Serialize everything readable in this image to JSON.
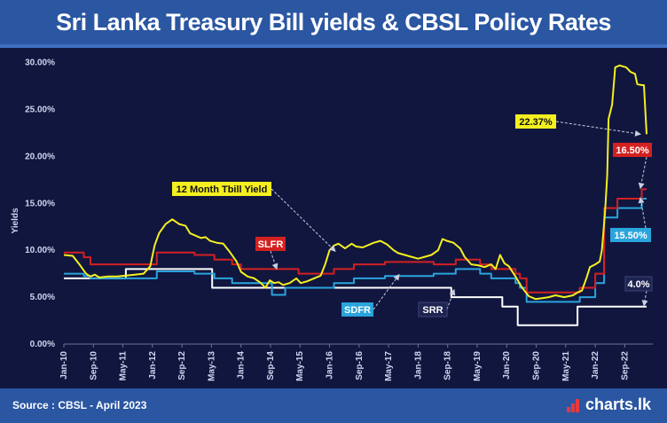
{
  "header": {
    "title": "Sri Lanka Treasury Bill yields & CBSL Policy Rates"
  },
  "footer": {
    "source": "Source : CBSL - April 2023",
    "brand": "charts.lk"
  },
  "colors": {
    "tbill": "#f4ef1f",
    "slfr": "#d42020",
    "sdfr": "#2aa4dc",
    "srr": "#ffffff",
    "panel": "#11163f",
    "bar": "#2a56a2"
  },
  "chart_data": {
    "type": "line",
    "ylabel": "Yields",
    "ylim": [
      0,
      31
    ],
    "yticks": [
      0,
      5,
      10,
      15,
      20,
      25,
      30
    ],
    "ytick_labels": [
      "0.00%",
      "5.00%",
      "10.00%",
      "15.00%",
      "20.00%",
      "25.00%",
      "30.00%"
    ],
    "xlim": [
      2010.0,
      2023.3
    ],
    "xticks": [
      2010.0,
      2010.667,
      2011.333,
      2012.0,
      2012.667,
      2013.333,
      2014.0,
      2014.667,
      2015.333,
      2016.0,
      2016.667,
      2017.333,
      2018.0,
      2018.667,
      2019.333,
      2020.0,
      2020.667,
      2021.333,
      2022.0,
      2022.667
    ],
    "xtick_labels": [
      "Jan-10",
      "Sep-10",
      "May-11",
      "Jan-12",
      "Sep-12",
      "May-13",
      "Jan-14",
      "Sep-14",
      "May-15",
      "Jan-16",
      "Sep-16",
      "May-17",
      "Jan-18",
      "Sep-18",
      "May-19",
      "Jan-20",
      "Sep-20",
      "May-21",
      "Jan-22",
      "Sep-22"
    ],
    "series": [
      {
        "name": "12 Month Tbill Yield",
        "color": "#f4ef1f",
        "points": [
          [
            2010.0,
            9.5
          ],
          [
            2010.2,
            9.4
          ],
          [
            2010.35,
            8.5
          ],
          [
            2010.5,
            7.5
          ],
          [
            2010.6,
            7.2
          ],
          [
            2010.7,
            7.4
          ],
          [
            2010.8,
            7.1
          ],
          [
            2011.0,
            7.2
          ],
          [
            2011.2,
            7.2
          ],
          [
            2011.4,
            7.3
          ],
          [
            2011.6,
            7.4
          ],
          [
            2011.8,
            7.5
          ],
          [
            2011.95,
            8.3
          ],
          [
            2012.05,
            10.5
          ],
          [
            2012.15,
            11.8
          ],
          [
            2012.3,
            12.8
          ],
          [
            2012.45,
            13.3
          ],
          [
            2012.6,
            12.8
          ],
          [
            2012.75,
            12.6
          ],
          [
            2012.85,
            11.8
          ],
          [
            2013.0,
            11.5
          ],
          [
            2013.1,
            11.3
          ],
          [
            2013.2,
            11.4
          ],
          [
            2013.3,
            11.0
          ],
          [
            2013.45,
            10.8
          ],
          [
            2013.6,
            10.7
          ],
          [
            2013.75,
            9.8
          ],
          [
            2013.9,
            8.8
          ],
          [
            2014.0,
            7.7
          ],
          [
            2014.15,
            7.2
          ],
          [
            2014.3,
            7.0
          ],
          [
            2014.45,
            6.5
          ],
          [
            2014.55,
            6.0
          ],
          [
            2014.65,
            6.8
          ],
          [
            2014.75,
            6.5
          ],
          [
            2014.85,
            6.6
          ],
          [
            2014.95,
            6.3
          ],
          [
            2015.1,
            6.5
          ],
          [
            2015.25,
            7.0
          ],
          [
            2015.35,
            6.5
          ],
          [
            2015.5,
            6.7
          ],
          [
            2015.65,
            7.0
          ],
          [
            2015.8,
            7.3
          ],
          [
            2015.9,
            8.5
          ],
          [
            2016.0,
            10.0
          ],
          [
            2016.1,
            10.5
          ],
          [
            2016.2,
            10.7
          ],
          [
            2016.35,
            10.2
          ],
          [
            2016.5,
            10.7
          ],
          [
            2016.6,
            10.4
          ],
          [
            2016.75,
            10.3
          ],
          [
            2016.9,
            10.6
          ],
          [
            2017.0,
            10.8
          ],
          [
            2017.15,
            11.0
          ],
          [
            2017.3,
            10.6
          ],
          [
            2017.45,
            10.0
          ],
          [
            2017.55,
            9.7
          ],
          [
            2017.7,
            9.5
          ],
          [
            2017.85,
            9.3
          ],
          [
            2018.0,
            9.1
          ],
          [
            2018.15,
            9.3
          ],
          [
            2018.3,
            9.5
          ],
          [
            2018.45,
            10.0
          ],
          [
            2018.55,
            11.2
          ],
          [
            2018.65,
            11.0
          ],
          [
            2018.8,
            10.8
          ],
          [
            2018.95,
            10.2
          ],
          [
            2019.05,
            9.3
          ],
          [
            2019.2,
            8.5
          ],
          [
            2019.35,
            8.4
          ],
          [
            2019.5,
            8.2
          ],
          [
            2019.65,
            8.5
          ],
          [
            2019.75,
            8.0
          ],
          [
            2019.85,
            9.5
          ],
          [
            2019.95,
            8.6
          ],
          [
            2020.05,
            8.3
          ],
          [
            2020.2,
            7.2
          ],
          [
            2020.35,
            6.0
          ],
          [
            2020.5,
            5.1
          ],
          [
            2020.65,
            4.8
          ],
          [
            2020.8,
            4.9
          ],
          [
            2020.95,
            5.0
          ],
          [
            2021.1,
            5.2
          ],
          [
            2021.3,
            5.0
          ],
          [
            2021.5,
            5.2
          ],
          [
            2021.6,
            5.5
          ],
          [
            2021.7,
            5.7
          ],
          [
            2021.8,
            7.0
          ],
          [
            2021.88,
            8.2
          ],
          [
            2022.0,
            8.5
          ],
          [
            2022.1,
            8.8
          ],
          [
            2022.15,
            10.0
          ],
          [
            2022.22,
            14.0
          ],
          [
            2022.27,
            18.0
          ],
          [
            2022.3,
            24.0
          ],
          [
            2022.38,
            25.5
          ],
          [
            2022.45,
            29.5
          ],
          [
            2022.55,
            29.7
          ],
          [
            2022.7,
            29.5
          ],
          [
            2022.8,
            29.0
          ],
          [
            2022.9,
            28.8
          ],
          [
            2022.95,
            27.7
          ],
          [
            2023.05,
            27.6
          ],
          [
            2023.1,
            27.6
          ],
          [
            2023.16,
            22.37
          ]
        ]
      },
      {
        "name": "SLFR",
        "color": "#d42020",
        "points": [
          [
            2010.0,
            9.75
          ],
          [
            2010.45,
            9.75
          ],
          [
            2010.45,
            9.25
          ],
          [
            2010.6,
            9.25
          ],
          [
            2010.6,
            8.5
          ],
          [
            2012.1,
            8.5
          ],
          [
            2012.1,
            9.75
          ],
          [
            2012.95,
            9.75
          ],
          [
            2012.95,
            9.5
          ],
          [
            2013.4,
            9.5
          ],
          [
            2013.4,
            9.0
          ],
          [
            2013.8,
            9.0
          ],
          [
            2013.8,
            8.5
          ],
          [
            2014.0,
            8.5
          ],
          [
            2014.0,
            8.0
          ],
          [
            2015.3,
            8.0
          ],
          [
            2015.3,
            7.5
          ],
          [
            2016.1,
            7.5
          ],
          [
            2016.1,
            8.0
          ],
          [
            2016.55,
            8.0
          ],
          [
            2016.55,
            8.5
          ],
          [
            2017.25,
            8.5
          ],
          [
            2017.25,
            8.75
          ],
          [
            2018.35,
            8.75
          ],
          [
            2018.35,
            8.5
          ],
          [
            2018.85,
            8.5
          ],
          [
            2018.85,
            9.0
          ],
          [
            2019.4,
            9.0
          ],
          [
            2019.4,
            8.5
          ],
          [
            2019.65,
            8.5
          ],
          [
            2019.65,
            8.0
          ],
          [
            2020.2,
            8.0
          ],
          [
            2020.2,
            7.5
          ],
          [
            2020.3,
            7.5
          ],
          [
            2020.3,
            7.0
          ],
          [
            2020.45,
            7.0
          ],
          [
            2020.45,
            5.5
          ],
          [
            2021.65,
            5.5
          ],
          [
            2021.65,
            6.0
          ],
          [
            2022.0,
            6.0
          ],
          [
            2022.0,
            7.5
          ],
          [
            2022.2,
            7.5
          ],
          [
            2022.2,
            14.5
          ],
          [
            2022.5,
            14.5
          ],
          [
            2022.5,
            15.5
          ],
          [
            2023.05,
            15.5
          ],
          [
            2023.05,
            16.5
          ],
          [
            2023.16,
            16.5
          ]
        ]
      },
      {
        "name": "SDFR",
        "color": "#2aa4dc",
        "points": [
          [
            2010.0,
            7.5
          ],
          [
            2010.45,
            7.5
          ],
          [
            2010.45,
            7.25
          ],
          [
            2010.6,
            7.25
          ],
          [
            2010.6,
            7.0
          ],
          [
            2012.1,
            7.0
          ],
          [
            2012.1,
            7.75
          ],
          [
            2012.95,
            7.75
          ],
          [
            2012.95,
            7.5
          ],
          [
            2013.4,
            7.5
          ],
          [
            2013.4,
            7.0
          ],
          [
            2013.8,
            7.0
          ],
          [
            2013.8,
            6.5
          ],
          [
            2014.7,
            6.5
          ],
          [
            2014.7,
            5.25
          ],
          [
            2015.0,
            5.25
          ],
          [
            2015.0,
            6.0
          ],
          [
            2016.1,
            6.0
          ],
          [
            2016.1,
            6.5
          ],
          [
            2016.55,
            6.5
          ],
          [
            2016.55,
            7.0
          ],
          [
            2017.25,
            7.0
          ],
          [
            2017.25,
            7.25
          ],
          [
            2018.35,
            7.25
          ],
          [
            2018.35,
            7.5
          ],
          [
            2018.85,
            7.5
          ],
          [
            2018.85,
            8.0
          ],
          [
            2019.4,
            8.0
          ],
          [
            2019.4,
            7.5
          ],
          [
            2019.65,
            7.5
          ],
          [
            2019.65,
            7.0
          ],
          [
            2020.2,
            7.0
          ],
          [
            2020.2,
            6.5
          ],
          [
            2020.3,
            6.5
          ],
          [
            2020.3,
            6.0
          ],
          [
            2020.45,
            6.0
          ],
          [
            2020.45,
            4.5
          ],
          [
            2021.65,
            4.5
          ],
          [
            2021.65,
            5.0
          ],
          [
            2022.0,
            5.0
          ],
          [
            2022.0,
            6.5
          ],
          [
            2022.2,
            6.5
          ],
          [
            2022.2,
            13.5
          ],
          [
            2022.5,
            13.5
          ],
          [
            2022.5,
            14.5
          ],
          [
            2023.05,
            14.5
          ],
          [
            2023.05,
            15.5
          ],
          [
            2023.16,
            15.5
          ]
        ]
      },
      {
        "name": "SRR",
        "color": "#ffffff",
        "points": [
          [
            2010.0,
            7.0
          ],
          [
            2011.4,
            7.0
          ],
          [
            2011.4,
            8.0
          ],
          [
            2013.35,
            8.0
          ],
          [
            2013.35,
            6.0
          ],
          [
            2018.75,
            6.0
          ],
          [
            2018.75,
            5.0
          ],
          [
            2019.9,
            5.0
          ],
          [
            2019.9,
            4.0
          ],
          [
            2020.25,
            4.0
          ],
          [
            2020.25,
            2.0
          ],
          [
            2021.6,
            2.0
          ],
          [
            2021.6,
            4.0
          ],
          [
            2023.16,
            4.0
          ]
        ]
      }
    ],
    "annotations": [
      {
        "text": "12 Month Tbill Yield",
        "style": "yellow"
      },
      {
        "text": "SLFR",
        "style": "red"
      },
      {
        "text": "SDFR",
        "style": "blue"
      },
      {
        "text": "SRR",
        "style": "dark"
      },
      {
        "text": "22.37%",
        "style": "yellow"
      },
      {
        "text": "16.50%",
        "style": "red"
      },
      {
        "text": "15.50%",
        "style": "blue"
      },
      {
        "text": "4.0%",
        "style": "dark"
      }
    ]
  }
}
